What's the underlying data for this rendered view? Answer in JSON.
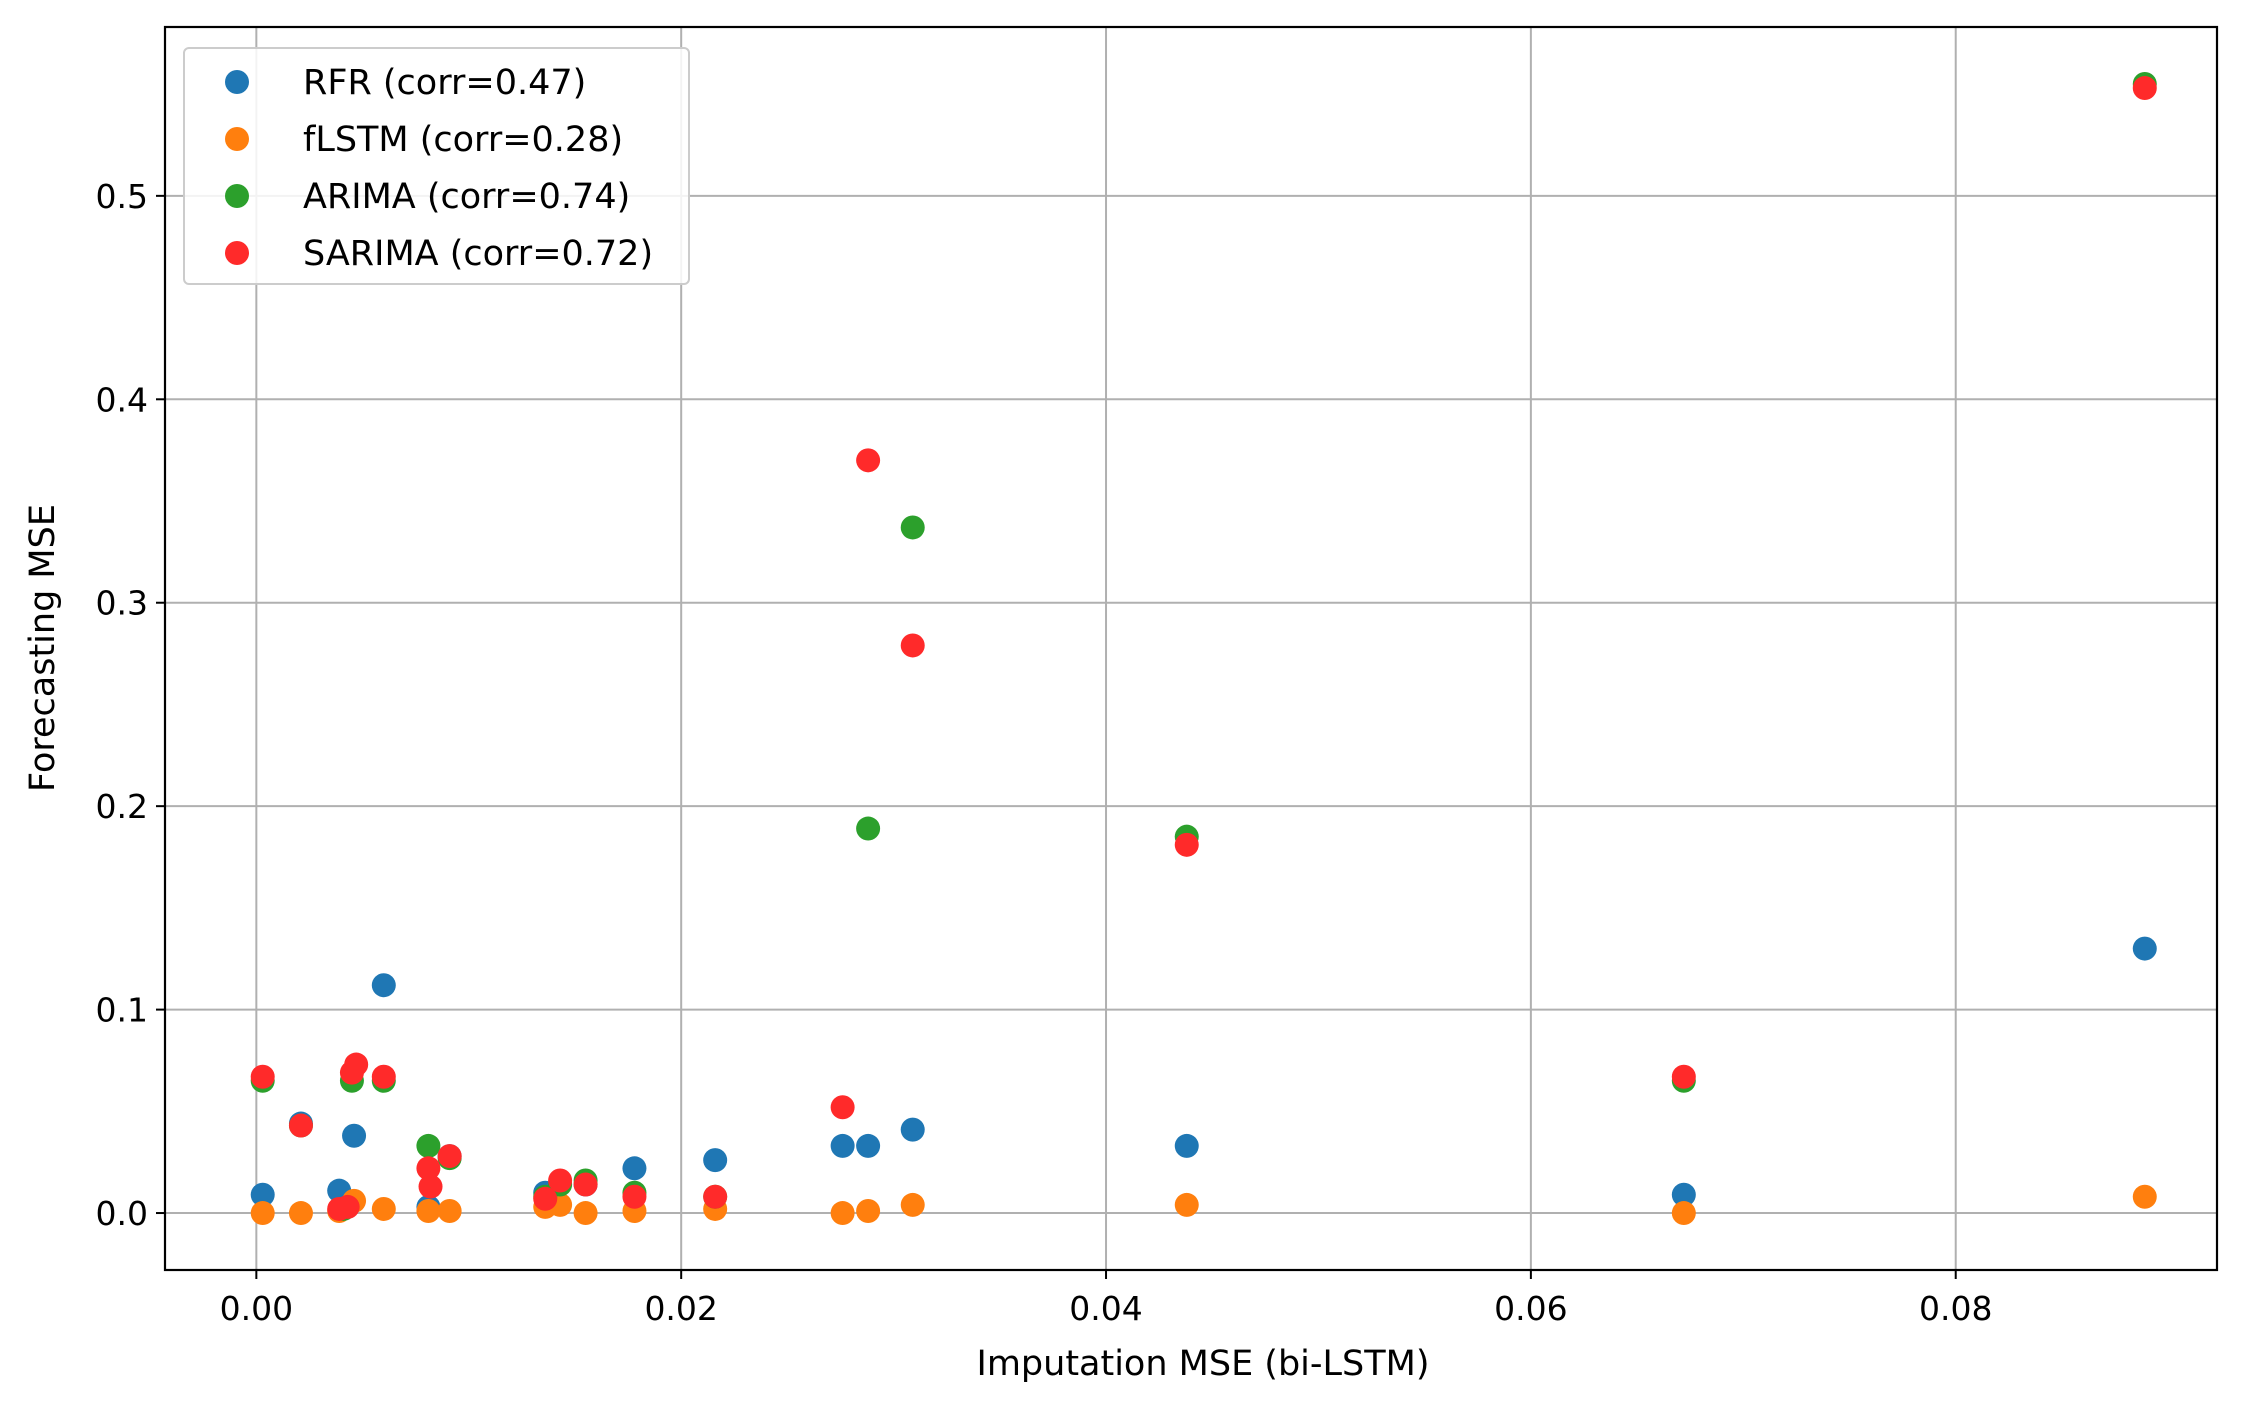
{
  "chart_data": {
    "type": "scatter",
    "title": "",
    "xlabel": "Imputation MSE (bi-LSTM)",
    "ylabel": "Forecasting MSE",
    "xlim": [
      -0.0043,
      0.0923
    ],
    "ylim": [
      -0.028,
      0.583
    ],
    "xticks": [
      0.0,
      0.02,
      0.04,
      0.06,
      0.08
    ],
    "xtick_labels": [
      "0.00",
      "0.02",
      "0.04",
      "0.06",
      "0.08"
    ],
    "yticks": [
      0.0,
      0.1,
      0.2,
      0.3,
      0.4,
      0.5
    ],
    "ytick_labels": [
      "0.0",
      "0.1",
      "0.2",
      "0.3",
      "0.4",
      "0.5"
    ],
    "grid": true,
    "legend_position": "upper-left",
    "series": [
      {
        "name": "RFR (corr=0.47)",
        "color": "#1f77b4",
        "x": [
          0.0003,
          0.0021,
          0.0039,
          0.0046,
          0.006,
          0.0081,
          0.0091,
          0.0136,
          0.0155,
          0.0178,
          0.0216,
          0.0276,
          0.0288,
          0.0309,
          0.0438,
          0.0672,
          0.0889
        ],
        "y": [
          0.009,
          0.044,
          0.011,
          0.038,
          0.112,
          0.003,
          0.028,
          0.01,
          0.014,
          0.022,
          0.026,
          0.033,
          0.033,
          0.041,
          0.033,
          0.009,
          0.13
        ]
      },
      {
        "name": "fLSTM (corr=0.28)",
        "color": "#ff7f0e",
        "x": [
          0.0003,
          0.0021,
          0.0039,
          0.0046,
          0.006,
          0.0081,
          0.0091,
          0.0136,
          0.0143,
          0.0155,
          0.0178,
          0.0216,
          0.0276,
          0.0288,
          0.0309,
          0.0438,
          0.0672,
          0.0889
        ],
        "y": [
          0.0,
          0.0,
          0.001,
          0.006,
          0.002,
          0.001,
          0.001,
          0.003,
          0.004,
          0.0,
          0.001,
          0.002,
          0.0,
          0.001,
          0.004,
          0.004,
          0.0,
          0.008
        ]
      },
      {
        "name": "ARIMA (corr=0.74)",
        "color": "#2ca02c",
        "x": [
          0.0003,
          0.0021,
          0.0041,
          0.0045,
          0.006,
          0.0081,
          0.0091,
          0.0136,
          0.0143,
          0.0155,
          0.0178,
          0.0216,
          0.0288,
          0.0309,
          0.0438,
          0.0672,
          0.0889
        ],
        "y": [
          0.065,
          0.043,
          0.002,
          0.065,
          0.065,
          0.033,
          0.027,
          0.008,
          0.014,
          0.016,
          0.01,
          0.008,
          0.189,
          0.337,
          0.185,
          0.065,
          0.555
        ]
      },
      {
        "name": "SARIMA (corr=0.72)",
        "color": "#ff2a2a",
        "x": [
          0.0003,
          0.0021,
          0.0039,
          0.0043,
          0.0045,
          0.0047,
          0.006,
          0.0081,
          0.0082,
          0.0091,
          0.0136,
          0.0143,
          0.0155,
          0.0178,
          0.0216,
          0.0276,
          0.0288,
          0.0309,
          0.0438,
          0.0672,
          0.0889
        ],
        "y": [
          0.067,
          0.043,
          0.002,
          0.003,
          0.069,
          0.073,
          0.067,
          0.022,
          0.013,
          0.028,
          0.007,
          0.016,
          0.014,
          0.008,
          0.008,
          0.052,
          0.37,
          0.279,
          0.181,
          0.067,
          0.553
        ]
      }
    ]
  }
}
